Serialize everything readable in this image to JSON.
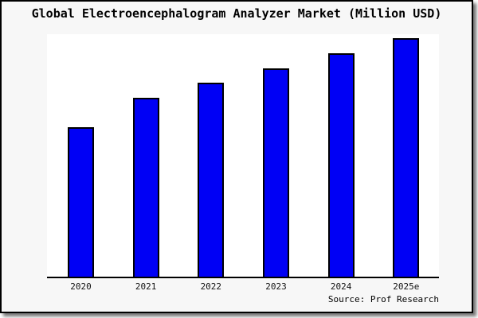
{
  "chart_data": {
    "type": "bar",
    "title": "Global Electroencephalogram Analyzer Market (Million USD)",
    "categories": [
      "2020",
      "2021",
      "2022",
      "2023",
      "2024",
      "2025e"
    ],
    "values_pct_of_max": [
      62.7,
      75.0,
      81.3,
      87.3,
      93.7,
      100.0
    ],
    "values_note": "y-axis shows no ticks, gridlines or numeric labels; values are bar heights relative to the tallest bar (2025e = 100)",
    "xlabel": "",
    "ylabel": "",
    "grid": false,
    "legend": false,
    "source_note": "Source: Prof Research",
    "colors": {
      "bar_fill": "#0000f5",
      "bar_border": "#000000",
      "plot_bg": "#ffffff",
      "frame_bg": "#f7f7f7",
      "frame_border": "#000000",
      "text": "#000000"
    }
  }
}
